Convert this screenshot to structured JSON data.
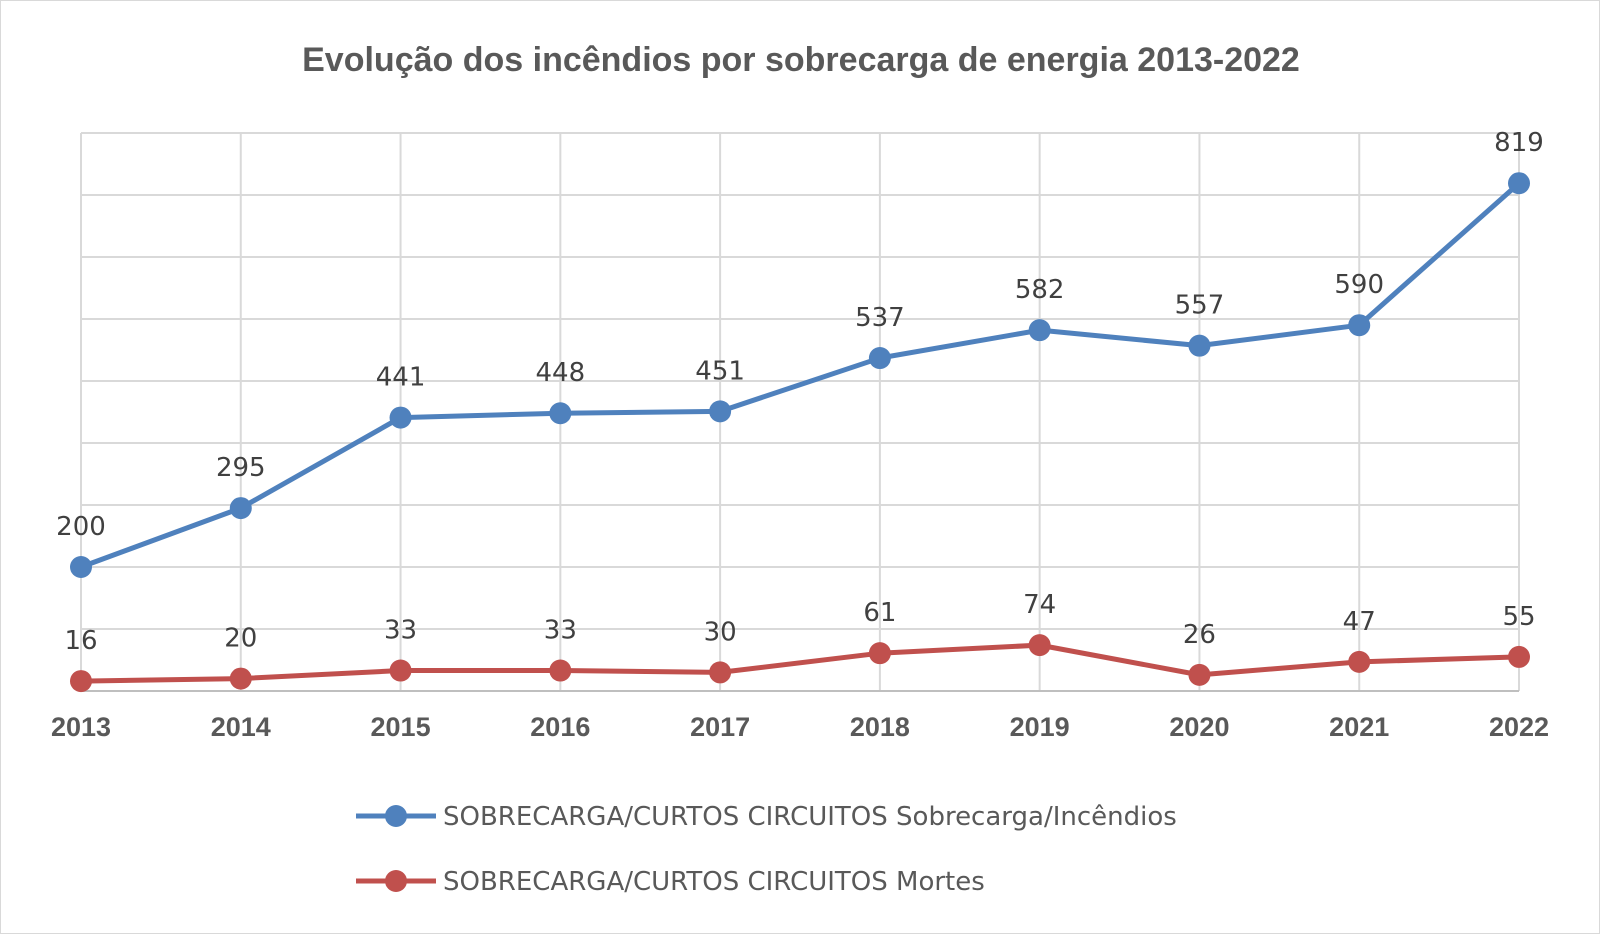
{
  "chart_data": {
    "type": "line",
    "title": "Evolução dos incêndios por sobrecarga de energia 2013-2022",
    "categories": [
      "2013",
      "2014",
      "2015",
      "2016",
      "2017",
      "2018",
      "2019",
      "2020",
      "2021",
      "2022"
    ],
    "ylim": [
      0,
      900
    ],
    "grid": true,
    "legend": "bottom",
    "series": [
      {
        "name": "SOBRECARGA/CURTOS CIRCUITOS Sobrecarga/Incêndios",
        "color": "#4f81bd",
        "values": [
          200,
          295,
          441,
          448,
          451,
          537,
          582,
          557,
          590,
          819
        ]
      },
      {
        "name": "SOBRECARGA/CURTOS CIRCUITOS Mortes",
        "color": "#c0504d",
        "values": [
          16,
          20,
          33,
          33,
          30,
          61,
          74,
          26,
          47,
          55
        ]
      }
    ]
  }
}
